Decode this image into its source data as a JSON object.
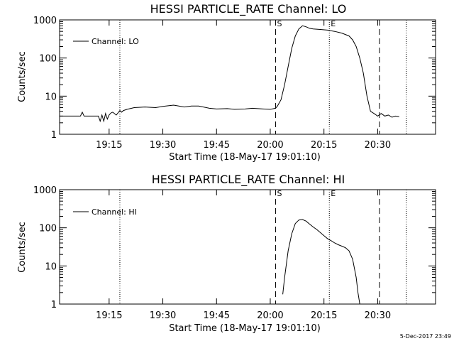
{
  "footer": {
    "timestamp": "5-Dec-2017 23:49"
  },
  "chart_data": [
    {
      "type": "line",
      "title": "HESSI PARTICLE_RATE Channel: LO",
      "xlabel": "Start Time (18-May-17 19:01:10)",
      "ylabel": "Counts/sec",
      "yscale": "log",
      "ylim": [
        1,
        1000
      ],
      "xlim_minutes_since_start": [
        0,
        105
      ],
      "x_tick_labels": [
        "19:15",
        "19:30",
        "19:45",
        "20:00",
        "20:15",
        "20:30"
      ],
      "y_tick_labels": [
        "1",
        "10",
        "100",
        "1000"
      ],
      "legend": {
        "label": "Channel: LO",
        "position": "top-left"
      },
      "markers": {
        "dotted_lines": [
          "19:18:00",
          "20:16:30",
          "20:38:00"
        ],
        "dashed_lines": [
          "20:01:30",
          "20:30:30"
        ],
        "letters": [
          "S",
          "E"
        ]
      },
      "series": [
        {
          "name": "Channel: LO",
          "x": [
            "19:01:10",
            "19:07:00",
            "19:07:30",
            "19:08:00",
            "19:12:00",
            "19:12:30",
            "19:13:00",
            "19:13:30",
            "19:14:00",
            "19:14:30",
            "19:15:00",
            "19:15:30",
            "19:16:00",
            "19:17:00",
            "19:18:00",
            "19:18:30",
            "19:19:00",
            "19:20:00",
            "19:22:00",
            "19:25:00",
            "19:28:00",
            "19:30:00",
            "19:33:00",
            "19:36:00",
            "19:38:00",
            "19:40:00",
            "19:43:00",
            "19:45:00",
            "19:48:00",
            "19:50:00",
            "19:53:00",
            "19:55:00",
            "19:58:00",
            "20:00:00",
            "20:01:30",
            "20:02:00",
            "20:03:00",
            "20:04:00",
            "20:05:00",
            "20:06:00",
            "20:07:00",
            "20:08:00",
            "20:09:00",
            "20:10:00",
            "20:11:00",
            "20:12:00",
            "20:14:00",
            "20:16:00",
            "20:18:00",
            "20:20:00",
            "20:22:00",
            "20:23:00",
            "20:24:00",
            "20:25:00",
            "20:26:00",
            "20:27:00",
            "20:28:00",
            "20:29:00",
            "20:30:00",
            "20:31:00",
            "20:32:00",
            "20:33:00",
            "20:34:00",
            "20:35:00",
            "20:36:00"
          ],
          "y": [
            3,
            3,
            3.8,
            3,
            3,
            2.2,
            3.2,
            2.2,
            3.5,
            2.5,
            3.2,
            3.6,
            3.8,
            3.2,
            4.2,
            3.8,
            4.2,
            4.5,
            5,
            5.2,
            5,
            5.4,
            5.8,
            5.2,
            5.5,
            5.5,
            4.8,
            4.6,
            4.7,
            4.5,
            4.6,
            4.8,
            4.6,
            4.5,
            4.8,
            5.5,
            8,
            20,
            60,
            180,
            380,
            580,
            700,
            660,
            600,
            580,
            560,
            540,
            500,
            450,
            380,
            300,
            200,
            100,
            40,
            10,
            4,
            3.5,
            3,
            3.5,
            3,
            3.2,
            2.8,
            3,
            2.9
          ]
        }
      ]
    },
    {
      "type": "line",
      "title": "HESSI PARTICLE_RATE Channel: HI",
      "xlabel": "Start Time (18-May-17 19:01:10)",
      "ylabel": "Counts/sec",
      "yscale": "log",
      "ylim": [
        1,
        1000
      ],
      "xlim_minutes_since_start": [
        0,
        105
      ],
      "x_tick_labels": [
        "19:15",
        "19:30",
        "19:45",
        "20:00",
        "20:15",
        "20:30"
      ],
      "y_tick_labels": [
        "1",
        "10",
        "100",
        "1000"
      ],
      "legend": {
        "label": "Channel: HI",
        "position": "top-left"
      },
      "markers": {
        "dotted_lines": [
          "19:18:00",
          "20:16:30",
          "20:38:00"
        ],
        "dashed_lines": [
          "20:01:30",
          "20:30:30"
        ],
        "letters": [
          "S",
          "E"
        ]
      },
      "series": [
        {
          "name": "Channel: HI",
          "x": [
            "20:03:30",
            "20:04:00",
            "20:05:00",
            "20:06:00",
            "20:07:00",
            "20:08:00",
            "20:09:00",
            "20:10:00",
            "20:11:00",
            "20:12:00",
            "20:13:00",
            "20:14:00",
            "20:15:00",
            "20:16:00",
            "20:17:00",
            "20:18:00",
            "20:19:00",
            "20:20:00",
            "20:21:00",
            "20:22:00",
            "20:23:00",
            "20:24:00",
            "20:24:30",
            "20:25:00"
          ],
          "y": [
            1.8,
            5,
            25,
            70,
            130,
            160,
            165,
            150,
            125,
            105,
            90,
            75,
            62,
            52,
            46,
            40,
            36,
            33,
            30,
            25,
            15,
            5,
            2,
            0.8
          ]
        }
      ]
    }
  ]
}
